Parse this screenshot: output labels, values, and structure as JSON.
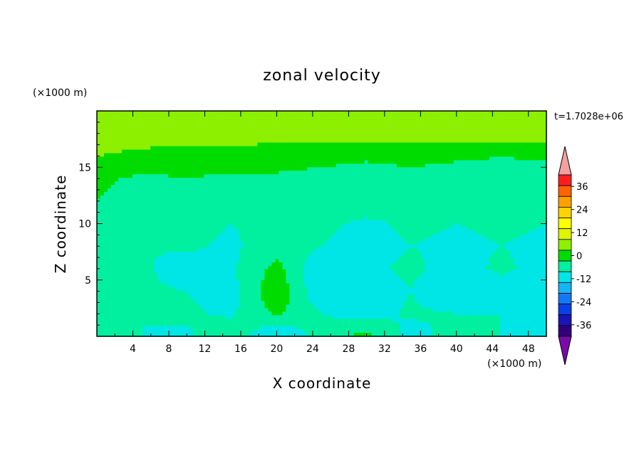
{
  "chart_data": {
    "type": "heatmap",
    "title": "zonal velocity",
    "xlabel": "X coordinate",
    "ylabel": "Z coordinate",
    "x_unit": "(×1000 m)",
    "y_unit": "(×1000 m)",
    "time_label": "t=1.7028e+06",
    "xlim": [
      0,
      50
    ],
    "ylim": [
      0,
      20
    ],
    "x_ticks": [
      4,
      8,
      12,
      16,
      20,
      24,
      28,
      32,
      36,
      40,
      44,
      48
    ],
    "y_ticks": [
      5,
      10,
      15
    ],
    "colorbar": {
      "ticks": [
        36,
        24,
        12,
        0,
        -12,
        -24,
        -36
      ],
      "levels": [
        -42,
        -36,
        -30,
        -24,
        -18,
        -12,
        -6,
        0,
        6,
        12,
        18,
        24,
        30,
        36,
        42
      ],
      "colors": [
        "#7b0aa8",
        "#31007a",
        "#1a14b8",
        "#0a40e6",
        "#1478f5",
        "#14b4f5",
        "#00e6e6",
        "#00f0a0",
        "#00dc00",
        "#8cf000",
        "#dcf500",
        "#ffff00",
        "#ffd200",
        "#ffa000",
        "#ff6400",
        "#ff1e1e",
        "#f4a0a0"
      ]
    },
    "series": [
      {
        "values": [
          [
            10,
            7,
            8,
            7,
            6,
            8,
            9,
            8,
            10,
            9,
            8
          ],
          [
            11,
            10,
            9,
            9,
            8,
            9,
            10,
            9,
            9,
            10,
            10
          ],
          [
            6,
            4,
            3,
            4,
            3,
            2,
            1,
            2,
            1,
            0,
            1
          ],
          [
            1,
            -1,
            0,
            -1,
            -1,
            -2,
            -3,
            -2,
            -3,
            -2,
            -3
          ],
          [
            0,
            -2,
            -3,
            -2,
            -3,
            -4,
            -3,
            -4,
            -3,
            -4,
            -3
          ],
          [
            -3,
            -5,
            -4,
            -6,
            -4,
            -5,
            -7,
            -5,
            -6,
            -5,
            -6
          ],
          [
            -4,
            -6,
            -5,
            -7,
            -3,
            -6,
            -8,
            -6,
            -7,
            -6,
            -7
          ],
          [
            -3,
            -5,
            -9,
            -7,
            2,
            -11,
            -7,
            -5,
            -8,
            -5,
            -8
          ],
          [
            -4,
            -5,
            -6,
            -8,
            5,
            -12,
            -9,
            -6,
            -12,
            -8,
            -11
          ],
          [
            -3,
            -6,
            -5,
            -7,
            1,
            -6,
            -9,
            -5,
            -6,
            -6,
            -8
          ],
          [
            -4,
            -6,
            -7,
            -1,
            -13,
            -3,
            2,
            -9,
            -3,
            -6,
            -7
          ]
        ]
      }
    ]
  }
}
